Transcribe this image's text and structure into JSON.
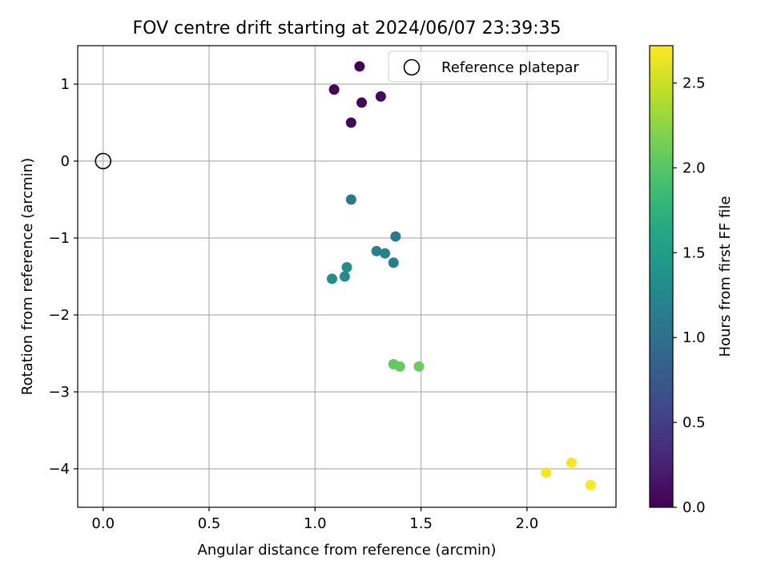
{
  "chart_data": {
    "type": "scatter",
    "title": "FOV centre drift starting at 2024/06/07 23:39:35",
    "xlabel": "Angular distance from reference (arcmin)",
    "ylabel": "Rotation from reference (arcmin)",
    "xlim": [
      -0.12,
      2.42
    ],
    "ylim": [
      -4.5,
      1.5
    ],
    "xticks": [
      0.0,
      0.5,
      1.0,
      1.5,
      2.0
    ],
    "xtick_labels": [
      "0.0",
      "0.5",
      "1.0",
      "1.5",
      "2.0"
    ],
    "yticks": [
      1,
      0,
      -1,
      -2,
      -3,
      -4
    ],
    "ytick_labels": [
      "1",
      "0",
      "−1",
      "−2",
      "−3",
      "−4"
    ],
    "grid": true,
    "legend": {
      "placement": "top-right",
      "entries": [
        {
          "label": "Reference platepar",
          "marker": "open-circle"
        }
      ]
    },
    "reference_point": {
      "x": 0.0,
      "y": 0.0
    },
    "colormap": "viridis",
    "colorbar": {
      "label": "Hours from first FF file",
      "range": [
        0.0,
        2.72
      ],
      "ticks": [
        0.0,
        0.5,
        1.0,
        1.5,
        2.0,
        2.5
      ],
      "tick_labels": [
        "0.0",
        "0.5",
        "1.0",
        "1.5",
        "2.0",
        "2.5"
      ]
    },
    "points": [
      {
        "x": 1.21,
        "y": 1.23,
        "c": 0.0
      },
      {
        "x": 1.09,
        "y": 0.93,
        "c": 0.02
      },
      {
        "x": 1.22,
        "y": 0.76,
        "c": 0.03
      },
      {
        "x": 1.31,
        "y": 0.84,
        "c": 0.04
      },
      {
        "x": 1.17,
        "y": 0.5,
        "c": 0.05
      },
      {
        "x": 1.17,
        "y": -0.5,
        "c": 1.08
      },
      {
        "x": 1.38,
        "y": -0.98,
        "c": 1.1
      },
      {
        "x": 1.29,
        "y": -1.17,
        "c": 1.18
      },
      {
        "x": 1.33,
        "y": -1.2,
        "c": 1.2
      },
      {
        "x": 1.37,
        "y": -1.32,
        "c": 1.15
      },
      {
        "x": 1.15,
        "y": -1.38,
        "c": 1.35
      },
      {
        "x": 1.14,
        "y": -1.5,
        "c": 1.3
      },
      {
        "x": 1.08,
        "y": -1.53,
        "c": 1.32
      },
      {
        "x": 1.37,
        "y": -2.64,
        "c": 2.05
      },
      {
        "x": 1.4,
        "y": -2.67,
        "c": 2.08
      },
      {
        "x": 1.49,
        "y": -2.67,
        "c": 2.1
      },
      {
        "x": 2.09,
        "y": -4.05,
        "c": 2.68
      },
      {
        "x": 2.21,
        "y": -3.92,
        "c": 2.7
      },
      {
        "x": 2.3,
        "y": -4.21,
        "c": 2.72
      }
    ]
  }
}
